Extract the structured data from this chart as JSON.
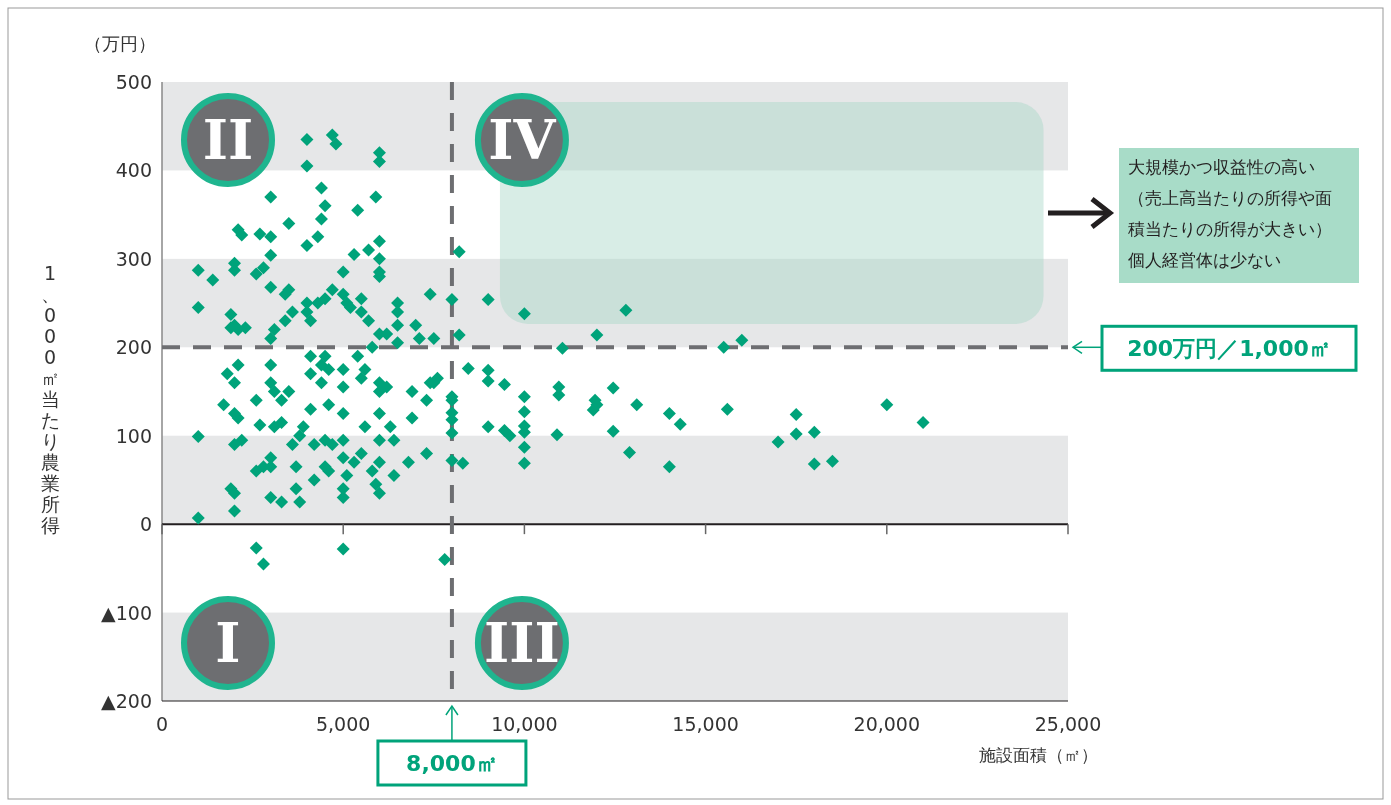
{
  "chart_data": {
    "type": "scatter",
    "xlabel": "施設面積（㎡）",
    "ylabel": "1、000㎡当たり農業所得",
    "xlim": [
      0,
      25000
    ],
    "ylim": [
      -200,
      500
    ],
    "xticks": [
      {
        "value": 0,
        "label": "0"
      },
      {
        "value": 5000,
        "label": "5,000"
      },
      {
        "value": 10000,
        "label": "10,000"
      },
      {
        "value": 15000,
        "label": "15,000"
      },
      {
        "value": 20000,
        "label": "20,000"
      },
      {
        "value": 25000,
        "label": "25,000"
      }
    ],
    "yticks": [
      {
        "value": -200,
        "label": "▲200"
      },
      {
        "value": -100,
        "label": "▲100"
      },
      0,
      100,
      200,
      300,
      400,
      500
    ],
    "marker": "diamond",
    "bands": [
      {
        "axis": "y",
        "from": -200,
        "to": -100,
        "color": "#e6e7e8"
      },
      {
        "axis": "y",
        "from": 0,
        "to": 100,
        "color": "#e6e7e8"
      },
      {
        "axis": "y",
        "from": 200,
        "to": 300,
        "color": "#e6e7e8"
      },
      {
        "axis": "y",
        "from": 400,
        "to": 500,
        "color": "#e6e7e8"
      }
    ],
    "ref_lines": [
      {
        "axis": "x",
        "value": 8000,
        "label": "8,000㎡",
        "color": "#6d6e71",
        "line_style": "dashed"
      },
      {
        "axis": "y",
        "value": 200,
        "label": "200万円／1,000㎡",
        "color": "#6d6e71",
        "line_style": "dashed"
      }
    ],
    "annotations": [
      "（万円）",
      "II",
      "IV",
      "I",
      "III",
      "大規模かつ収益性の高い（売上高当たりの所得や面積当たりの所得が大きい）個人経営体は少ない"
    ],
    "series": [
      {
        "color": "#00a37a",
        "x": [
          1000,
          1000,
          1000,
          1000,
          1400,
          1700,
          1800,
          1900,
          2000,
          2000,
          1900,
          2000,
          2100,
          2000,
          2100,
          2000,
          2100,
          2000,
          2200,
          2100,
          2200,
          2000,
          2000,
          1900,
          2300,
          2600,
          2800,
          2600,
          2800,
          2600,
          2700,
          2600,
          2700,
          2800,
          3000,
          3000,
          3000,
          3000,
          3000,
          3100,
          3000,
          3000,
          3100,
          3100,
          3000,
          3000,
          3000,
          3300,
          3300,
          3300,
          3400,
          3500,
          3400,
          3500,
          3600,
          3500,
          3600,
          3700,
          3700,
          3800,
          3800,
          3900,
          4000,
          4000,
          4000,
          4000,
          4000,
          4100,
          4100,
          4100,
          4100,
          4200,
          4200,
          4300,
          4400,
          4400,
          4500,
          4300,
          4500,
          4400,
          4400,
          4500,
          4600,
          4500,
          4500,
          4600,
          4700,
          4800,
          4700,
          4600,
          4700,
          5000,
          5000,
          5000,
          5100,
          5000,
          5000,
          5000,
          5000,
          5000,
          5000,
          5000,
          5100,
          5200,
          5300,
          5300,
          5400,
          5500,
          5500,
          5400,
          5500,
          5500,
          5600,
          5600,
          5700,
          5700,
          5800,
          5800,
          5900,
          5900,
          6000,
          6000,
          6000,
          6000,
          6000,
          6000,
          6000,
          6000,
          6000,
          6000,
          6000,
          6000,
          6000,
          6200,
          6200,
          6300,
          6500,
          6500,
          6500,
          6500,
          6400,
          6400,
          6900,
          6900,
          6800,
          7000,
          7100,
          7300,
          7400,
          7300,
          7400,
          7500,
          7500,
          7600,
          7800,
          8000,
          8000,
          8000,
          8000,
          8000,
          8000,
          8000,
          8200,
          8200,
          8300,
          8450,
          9000,
          9000,
          9000,
          9000,
          9450,
          9450,
          9600,
          10000,
          10000,
          10000,
          10000,
          10000,
          10000,
          10000,
          10900,
          10950,
          10950,
          11050,
          11900,
          11950,
          12000,
          12000,
          12450,
          12450,
          12800,
          12900,
          13100,
          14000,
          14000,
          14300,
          15500,
          15600,
          16000,
          17000,
          17500,
          17500,
          18000,
          18000,
          18500,
          20000,
          21000
        ],
        "values": [
          287,
          245,
          99,
          7,
          276,
          135,
          170,
          40,
          35,
          15,
          237,
          225,
          220,
          160,
          180,
          125,
          120,
          90,
          95,
          333,
          327,
          295,
          287,
          222,
          222,
          -27,
          -45,
          60,
          65,
          140,
          112,
          283,
          328,
          290,
          370,
          325,
          304,
          268,
          210,
          220,
          180,
          160,
          150,
          110,
          75,
          65,
          30,
          25,
          140,
          115,
          260,
          340,
          230,
          265,
          240,
          150,
          90,
          65,
          40,
          25,
          100,
          110,
          435,
          405,
          315,
          250,
          240,
          230,
          190,
          170,
          130,
          90,
          50,
          325,
          380,
          345,
          360,
          250,
          255,
          180,
          160,
          190,
          175,
          95,
          65,
          60,
          440,
          430,
          265,
          135,
          90,
          -28,
          285,
          260,
          250,
          175,
          155,
          125,
          95,
          75,
          40,
          30,
          55,
          245,
          305,
          70,
          355,
          255,
          240,
          190,
          165,
          80,
          110,
          175,
          310,
          230,
          200,
          60,
          370,
          45,
          420,
          410,
          320,
          300,
          285,
          280,
          215,
          160,
          150,
          125,
          95,
          70,
          35,
          215,
          155,
          110,
          250,
          240,
          225,
          205,
          95,
          55,
          150,
          120,
          70,
          225,
          210,
          80,
          260,
          140,
          160,
          210,
          160,
          165,
          -40,
          254,
          144,
          126,
          118,
          103,
          72,
          140,
          308,
          214,
          69,
          176,
          254,
          174,
          162,
          110,
          158,
          106,
          100,
          238,
          144,
          127,
          111,
          104,
          87,
          69,
          101,
          155,
          146,
          199,
          129,
          140,
          135,
          214,
          154,
          105,
          242,
          81,
          135,
          125,
          65,
          113,
          200,
          130,
          208,
          93,
          124,
          102,
          104,
          68,
          71,
          135,
          115
        ]
      }
    ]
  }
}
